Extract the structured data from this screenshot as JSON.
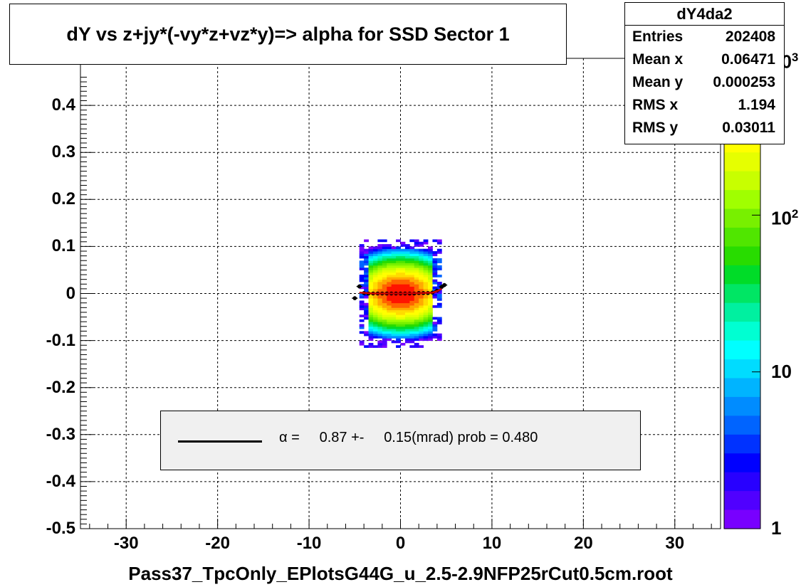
{
  "title": "dY vs  z+jy*(-vy*z+vz*y)=> alpha for SSD Sector 1",
  "xaxis_title": "Pass37_TpcOnly_EPlotsG44G_u_2.5-2.9NFP25rCut0.5cm.root",
  "stats": {
    "name": "dY4da2",
    "rows": [
      {
        "label": "Entries",
        "value": "202408"
      },
      {
        "label": "Mean x",
        "value": "0.06471"
      },
      {
        "label": "Mean y",
        "value": "0.000253"
      },
      {
        "label": "RMS x",
        "value": "1.194"
      },
      {
        "label": "RMS y",
        "value": "0.03011"
      }
    ]
  },
  "fit": {
    "symbol": "α",
    "text": " =     0.87 +-     0.15(mrad) prob = 0.480"
  },
  "colors": {
    "grid": "#000000",
    "fit_curve": "#cc0000",
    "profile_points": "#000000",
    "fit_box_bg": "#f0f0f0"
  },
  "chart_data": {
    "type": "heatmap",
    "xlim": [
      -35,
      35
    ],
    "ylim": [
      -0.5,
      0.5
    ],
    "xticks": [
      {
        "value": -30,
        "label": "-30"
      },
      {
        "value": -20,
        "label": "-20"
      },
      {
        "value": -10,
        "label": "-10"
      },
      {
        "value": 0,
        "label": "0"
      },
      {
        "value": 10,
        "label": "10"
      },
      {
        "value": 20,
        "label": "20"
      },
      {
        "value": 30,
        "label": "30"
      }
    ],
    "yticks": [
      {
        "value": 0.4,
        "label": "0.4"
      },
      {
        "value": 0.3,
        "label": "0.3"
      },
      {
        "value": 0.2,
        "label": "0.2"
      },
      {
        "value": 0.1,
        "label": "0.1"
      },
      {
        "value": 0,
        "label": "0"
      },
      {
        "value": -0.1,
        "label": "-0.1"
      },
      {
        "value": -0.2,
        "label": "-0.2"
      },
      {
        "value": -0.3,
        "label": "-0.3"
      },
      {
        "value": -0.4,
        "label": "-0.4"
      },
      {
        "value": -0.5,
        "label": "-0.5"
      }
    ],
    "grid": true,
    "zscale": "log",
    "zlim": [
      1,
      1000
    ],
    "zticks": [
      {
        "value": 1,
        "label": "1"
      },
      {
        "value": 10,
        "label": "10"
      },
      {
        "value": 100,
        "label": "10",
        "sup": "2"
      },
      {
        "value": 1000,
        "label": "10",
        "sup": "3"
      }
    ],
    "distribution": {
      "x_range": [
        -4.5,
        4.5
      ],
      "y_range": [
        -0.115,
        0.115
      ],
      "peak_count": 1000
    },
    "profile_points": [
      {
        "x": -5.0,
        "y": -0.01
      },
      {
        "x": -4.5,
        "y": 0.015
      },
      {
        "x": -4.0,
        "y": 0.001
      },
      {
        "x": -3.5,
        "y": 0.0
      },
      {
        "x": -3.0,
        "y": 0.0
      },
      {
        "x": -2.5,
        "y": 0.0
      },
      {
        "x": -2.0,
        "y": 0.0
      },
      {
        "x": -1.5,
        "y": 0.0
      },
      {
        "x": -1.0,
        "y": 0.0
      },
      {
        "x": -0.5,
        "y": 0.0
      },
      {
        "x": 0.0,
        "y": 0.0
      },
      {
        "x": 0.5,
        "y": 0.0
      },
      {
        "x": 1.0,
        "y": 0.0
      },
      {
        "x": 1.5,
        "y": 0.0
      },
      {
        "x": 2.0,
        "y": 0.001
      },
      {
        "x": 2.5,
        "y": 0.001
      },
      {
        "x": 3.0,
        "y": 0.001
      },
      {
        "x": 3.5,
        "y": 0.002
      },
      {
        "x": 4.0,
        "y": 0.006
      },
      {
        "x": 4.5,
        "y": 0.014
      },
      {
        "x": 4.8,
        "y": 0.018
      }
    ],
    "fit_curve": [
      {
        "x": -4.5,
        "y": 0.002
      },
      {
        "x": -3.0,
        "y": 0.0
      },
      {
        "x": 0.0,
        "y": 0.0
      },
      {
        "x": 2.5,
        "y": 0.001
      },
      {
        "x": 3.5,
        "y": 0.002
      },
      {
        "x": 4.0,
        "y": 0.005
      },
      {
        "x": 4.5,
        "y": 0.01
      }
    ]
  }
}
